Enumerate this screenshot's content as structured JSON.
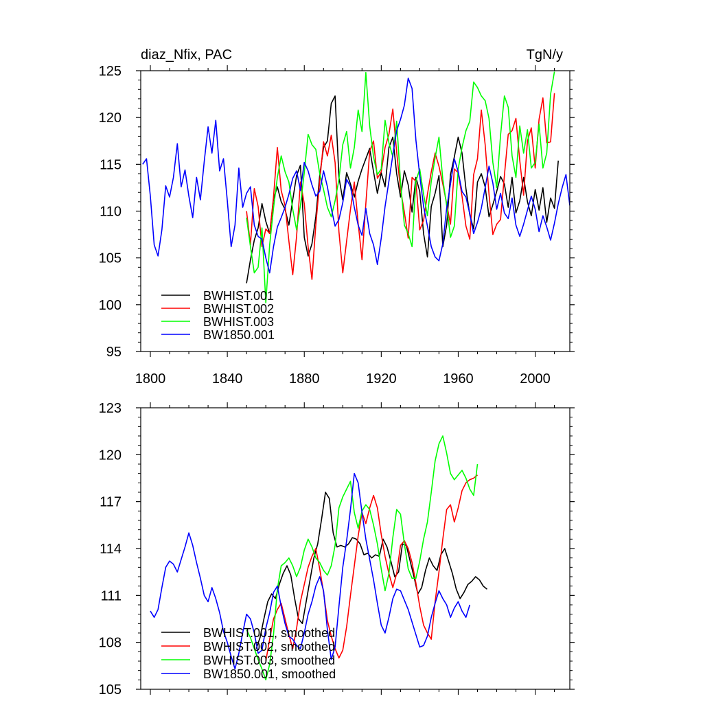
{
  "chart_data": [
    {
      "type": "line",
      "title_left": "diaz_Nfix, PAC",
      "title_right": "TgN/y",
      "xlabel": "",
      "ylabel": "",
      "xlim": [
        1795,
        2018
      ],
      "ylim": [
        95,
        125
      ],
      "xticks": [
        1800,
        1840,
        1880,
        1920,
        1960,
        2000
      ],
      "yticks": [
        95,
        100,
        105,
        110,
        115,
        120,
        125
      ],
      "xtick_labels": [
        "1800",
        "1840",
        "1880",
        "1920",
        "1960",
        "2000"
      ],
      "ytick_labels": [
        "95",
        "100",
        "105",
        "110",
        "115",
        "120",
        "125"
      ],
      "legend_position": "bottom-left",
      "series": [
        {
          "name": "BWHIST.001",
          "color": "#000000",
          "x_start": 1850,
          "x_step": 2,
          "values": [
            102.3,
            104.8,
            106.9,
            108.2,
            110.8,
            108.9,
            107.6,
            111.3,
            112.6,
            111.0,
            110.2,
            108.5,
            111.2,
            113.8,
            114.9,
            107.2,
            105.2,
            106.5,
            109.4,
            113.8,
            116.8,
            117.5,
            121.5,
            122.3,
            113.6,
            111.2,
            114.1,
            112.9,
            111.5,
            113.2,
            114.5,
            115.6,
            116.7,
            114.2,
            111.9,
            114.1,
            112.6,
            116.8,
            117.9,
            114.0,
            111.5,
            114.3,
            112.8,
            109.9,
            113.6,
            112.1,
            107.6,
            105.1,
            110.5,
            111.9,
            113.8,
            106.2,
            108.5,
            113.9,
            115.8,
            117.9,
            116.2,
            112.4,
            109.6,
            108.1,
            113.1,
            114.0,
            112.6,
            109.4,
            110.7,
            112.1,
            113.7,
            112.9,
            110.4,
            113.6,
            109.8,
            111.1,
            113.6,
            111.0,
            109.5,
            112.3,
            110.1,
            112.5,
            108.8,
            111.4,
            110.3,
            115.4
          ]
        },
        {
          "name": "BWHIST.002",
          "color": "#ff0000",
          "x_start": 1850,
          "x_step": 2,
          "values": [
            110.0,
            106.4,
            112.4,
            110.5,
            106.2,
            108.1,
            107.6,
            111.5,
            116.8,
            112.2,
            110.6,
            106.8,
            103.2,
            107.3,
            113.1,
            110.8,
            106.2,
            102.7,
            108.5,
            113.2,
            117.4,
            115.9,
            118.1,
            115.2,
            107.8,
            103.4,
            106.8,
            110.2,
            113.1,
            108.7,
            104.8,
            110.8,
            116.4,
            117.5,
            113.5,
            114.2,
            116.8,
            118.2,
            120.9,
            116.3,
            112.3,
            109.9,
            107.1,
            113.6,
            113.2,
            108.0,
            109.0,
            111.8,
            114.2,
            116.2,
            114.8,
            112.9,
            110.8,
            108.6,
            114.5,
            114.1,
            111.6,
            108.4,
            107.0,
            113.9,
            115.6,
            120.8,
            117.1,
            111.8,
            107.5,
            108.6,
            109.1,
            113.8,
            118.2,
            118.6,
            119.9,
            115.4,
            111.7,
            117.5,
            118.9,
            114.6,
            119.8,
            122.1,
            117.3,
            117.4,
            122.6
          ]
        },
        {
          "name": "BWHIST.003",
          "color": "#00ff00",
          "x_start": 1850,
          "x_step": 2,
          "values": [
            109.3,
            106.2,
            103.4,
            104.0,
            108.2,
            100.2,
            106.4,
            110.3,
            113.6,
            115.9,
            114.2,
            113.1,
            110.2,
            108.0,
            110.6,
            114.1,
            118.2,
            117.1,
            116.6,
            114.0,
            112.3,
            110.4,
            109.4,
            111.1,
            113.4,
            117.1,
            118.5,
            114.6,
            116.8,
            120.8,
            118.5,
            124.8,
            119.1,
            115.8,
            113.9,
            114.5,
            119.7,
            117.3,
            115.8,
            119.6,
            113.1,
            108.5,
            107.6,
            106.2,
            113.2,
            114.5,
            111.8,
            109.5,
            113.2,
            115.7,
            117.9,
            113.4,
            110.6,
            107.2,
            108.4,
            114.5,
            116.8,
            118.6,
            119.6,
            123.8,
            123.2,
            122.3,
            121.8,
            119.9,
            115.2,
            112.5,
            118.1,
            122.3,
            121.1,
            115.9,
            113.6,
            119.1,
            116.2,
            118.7,
            114.6,
            115.2,
            119.3,
            114.6,
            116.2,
            122.5,
            124.9
          ]
        },
        {
          "name": "BW1850.001",
          "color": "#0000ff",
          "x_start": 1796,
          "x_step": 2,
          "values": [
            115.0,
            115.6,
            111.6,
            106.4,
            105.2,
            108.0,
            112.7,
            111.5,
            113.6,
            117.2,
            112.6,
            114.4,
            111.6,
            109.3,
            113.6,
            111.2,
            115.3,
            119.0,
            116.2,
            119.7,
            114.3,
            115.6,
            111.1,
            106.2,
            108.5,
            114.6,
            110.4,
            111.9,
            112.6,
            108.5,
            107.3,
            107.0,
            105.0,
            103.4,
            106.2,
            108.3,
            109.3,
            110.4,
            111.8,
            113.5,
            114.3,
            112.2,
            115.2,
            114.3,
            112.8,
            111.6,
            112.1,
            114.3,
            112.6,
            110.3,
            108.4,
            109.1,
            110.9,
            113.4,
            112.6,
            110.4,
            108.5,
            107.4,
            110.3,
            107.6,
            106.4,
            104.3,
            107.1,
            110.5,
            113.2,
            116.0,
            118.6,
            119.8,
            121.3,
            124.2,
            123.1,
            117.6,
            113.8,
            110.5,
            108.4,
            106.2,
            105.1,
            104.7,
            106.5,
            110.3,
            112.9,
            115.6,
            114.2,
            112.1,
            111.5,
            109.7,
            107.6,
            108.8,
            110.3,
            112.5,
            114.8,
            113.0,
            110.2,
            111.9,
            109.8,
            109.2,
            111.4,
            108.5,
            107.3,
            108.6,
            110.1,
            111.6,
            110.2,
            107.8,
            109.5,
            108.3,
            106.9,
            108.7,
            110.8,
            112.5,
            113.9,
            110.6
          ]
        }
      ]
    },
    {
      "type": "line",
      "xlabel": "",
      "ylabel": "",
      "xlim": [
        1795,
        2018
      ],
      "ylim": [
        105,
        123
      ],
      "xticks": [
        1800,
        1840,
        1880,
        1920,
        1960,
        2000
      ],
      "yticks": [
        105,
        108,
        111,
        114,
        117,
        120,
        123
      ],
      "ytick_labels": [
        "105",
        "108",
        "111",
        "114",
        "117",
        "120",
        "123"
      ],
      "legend_position": "bottom-left",
      "series": [
        {
          "name": "BWHIST.001, smoothed",
          "color": "#000000",
          "x_start": 1855,
          "x_step": 2,
          "values": [
            107.6,
            108.3,
            109.5,
            110.6,
            111.1,
            110.8,
            111.7,
            112.4,
            112.9,
            112.3,
            110.8,
            109.5,
            109.2,
            110.6,
            112.0,
            113.4,
            114.3,
            115.9,
            117.6,
            117.2,
            115.0,
            114.1,
            114.2,
            114.1,
            114.3,
            114.7,
            114.6,
            114.3,
            113.6,
            113.7,
            113.4,
            113.6,
            113.5,
            114.6,
            114.1,
            113.2,
            112.2,
            112.5,
            114.3,
            114.2,
            113.2,
            112.2,
            111.1,
            111.5,
            112.6,
            113.4,
            112.9,
            112.6,
            113.6,
            114.0,
            113.2,
            112.4,
            111.4,
            110.8,
            111.2,
            111.7,
            111.9,
            112.2,
            112.0,
            111.6,
            111.4
          ]
        },
        {
          "name": "BWHIST.002, smoothed",
          "color": "#ff0000",
          "x_start": 1860,
          "x_step": 2,
          "values": [
            106.8,
            108.2,
            109.5,
            110.1,
            110.5,
            109.5,
            108.5,
            107.6,
            108.9,
            110.6,
            111.7,
            112.8,
            113.5,
            114.0,
            112.7,
            111.2,
            109.4,
            108.4,
            107.6,
            107.0,
            107.5,
            109.0,
            111.0,
            112.9,
            114.8,
            116.3,
            115.6,
            116.6,
            117.4,
            116.6,
            114.9,
            113.5,
            112.4,
            111.5,
            112.4,
            114.2,
            114.5,
            114.0,
            113.1,
            111.8,
            110.3,
            109.1,
            108.6,
            108.2,
            110.6,
            112.5,
            114.6,
            116.5,
            116.8,
            115.7,
            116.6,
            117.7,
            118.2,
            118.4,
            118.5,
            118.7
          ]
        },
        {
          "name": "BWHIST.003, smoothed",
          "color": "#00ff00",
          "x_start": 1850,
          "x_step": 2,
          "values": [
            108.8,
            108.3,
            107.6,
            106.9,
            106.3,
            105.6,
            106.6,
            108.5,
            111.4,
            112.9,
            113.1,
            113.4,
            112.9,
            112.2,
            112.8,
            113.9,
            114.6,
            114.1,
            113.4,
            113.1,
            112.6,
            112.3,
            112.9,
            114.2,
            116.6,
            117.3,
            117.8,
            118.3,
            116.3,
            115.3,
            116.4,
            116.8,
            116.5,
            115.5,
            114.3,
            112.7,
            111.3,
            112.4,
            114.7,
            116.5,
            116.2,
            114.3,
            112.7,
            112.1,
            112.1,
            113.2,
            114.6,
            115.7,
            117.6,
            119.6,
            120.7,
            121.2,
            120.1,
            118.8,
            118.4,
            118.7,
            119.0,
            118.5,
            117.8,
            117.4,
            119.4
          ]
        },
        {
          "name": "BW1850.001, smoothed",
          "color": "#0000ff",
          "x_start": 1800,
          "x_step": 2,
          "values": [
            110.0,
            109.6,
            110.1,
            111.5,
            112.8,
            113.2,
            113.0,
            112.5,
            113.3,
            114.1,
            115.0,
            114.2,
            113.1,
            112.1,
            111.0,
            110.6,
            111.5,
            110.8,
            109.9,
            108.7,
            108.0,
            107.1,
            106.3,
            107.3,
            108.6,
            109.8,
            109.5,
            108.6,
            107.3,
            107.5,
            108.9,
            109.9,
            111.2,
            111.6,
            110.3,
            109.2,
            108.4,
            108.2,
            107.8,
            107.6,
            108.6,
            109.8,
            110.6,
            111.6,
            112.2,
            111.3,
            108.8,
            106.9,
            107.7,
            110.3,
            112.8,
            114.5,
            116.5,
            118.8,
            118.2,
            116.3,
            114.6,
            113.3,
            112.0,
            110.5,
            109.1,
            108.6,
            109.6,
            110.8,
            111.4,
            111.3,
            110.7,
            110.1,
            109.3,
            108.5,
            107.7,
            107.8,
            108.4,
            109.6,
            110.5,
            111.3,
            110.8,
            110.4,
            109.6,
            110.2,
            110.6,
            110.0,
            109.6,
            110.4
          ]
        }
      ]
    }
  ]
}
